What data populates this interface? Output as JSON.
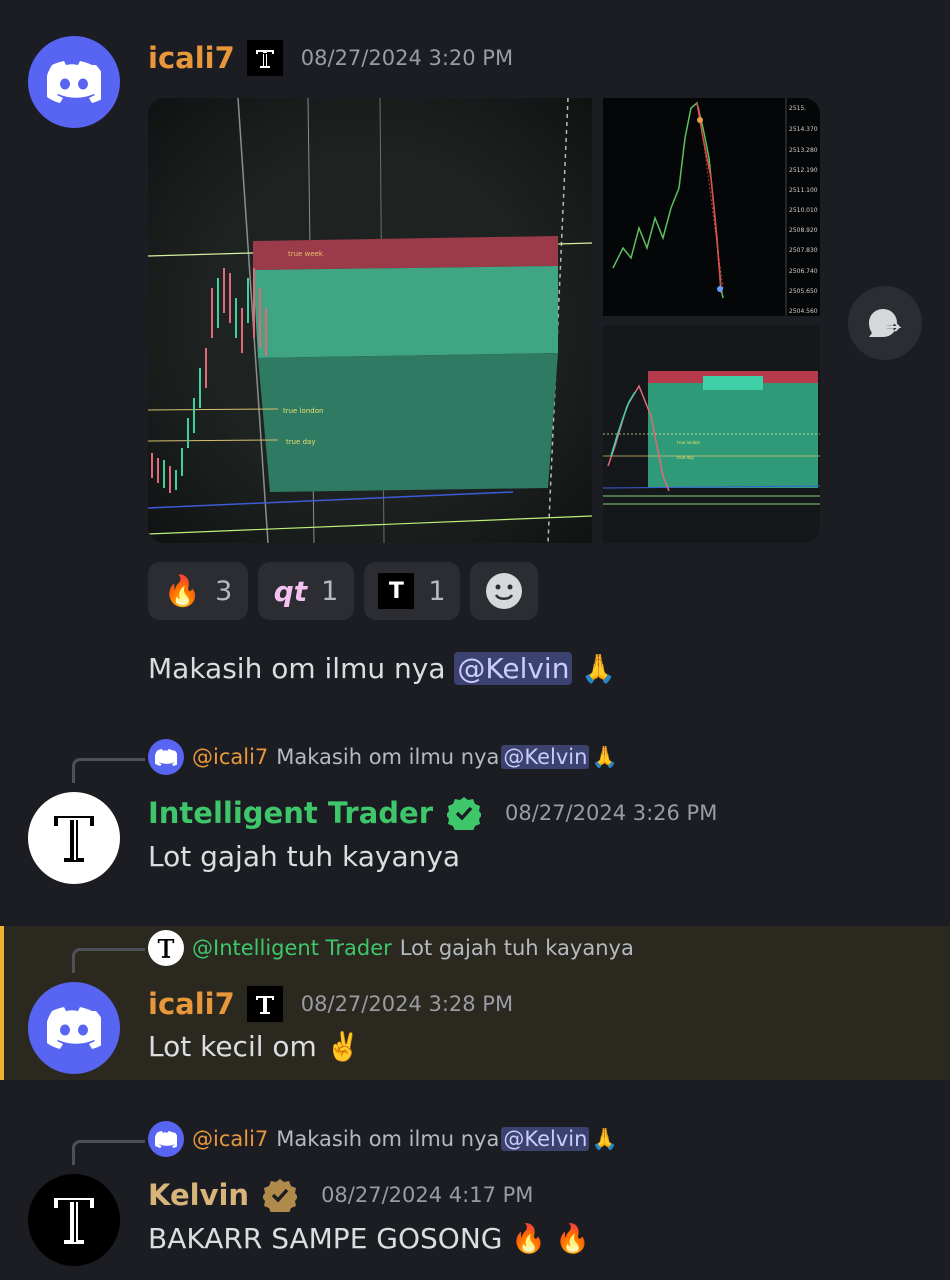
{
  "messages": [
    {
      "username": "icali7",
      "timestamp": "08/27/2024 3:20 PM",
      "content_prefix": "Makasih om ilmu nya",
      "mention": "@Kelvin",
      "emoji": "🙏",
      "attachment_labels": [
        "true week",
        "true london",
        "true day",
        "true london",
        "true day"
      ],
      "price_ticks": [
        "2515.",
        "2514.370",
        "2513.280",
        "2512.190",
        "2511.100",
        "2510.010",
        "2508.920",
        "2507.830",
        "2506.740",
        "2505.650",
        "2504.560"
      ],
      "reactions": [
        {
          "emoji": "🔥",
          "count": "3"
        },
        {
          "emoji": "qt",
          "count": "1"
        },
        {
          "emoji": "T",
          "count": "1"
        }
      ]
    },
    {
      "reply_user": "@icali7",
      "reply_text": "Makasih om ilmu nya",
      "reply_mention": "@Kelvin",
      "reply_emoji": "🙏",
      "username": "Intelligent Trader",
      "timestamp": "08/27/2024 3:26 PM",
      "content": "Lot gajah tuh kayanya"
    },
    {
      "reply_user": "@Intelligent Trader",
      "reply_text": "Lot gajah tuh kayanya",
      "username": "icali7",
      "timestamp": "08/27/2024 3:28 PM",
      "content": "Lot kecil om",
      "emoji": "✌️"
    },
    {
      "reply_user": "@icali7",
      "reply_text": "Makasih om ilmu nya",
      "reply_mention": "@Kelvin",
      "reply_emoji": "🙏",
      "username": "Kelvin",
      "timestamp": "08/27/2024 4:17 PM",
      "content": "BAKARR SAMPE GOSONG",
      "emoji": "🔥 🔥"
    }
  ],
  "colors": {
    "background": "#1c1d22",
    "icali_name": "#e8983a",
    "trader_name": "#3ec76a",
    "kelvin_name": "#d6b47a",
    "mention_bg": "#3c4270",
    "highlight_border": "#f0b232",
    "discord_blurple": "#5865f2"
  }
}
